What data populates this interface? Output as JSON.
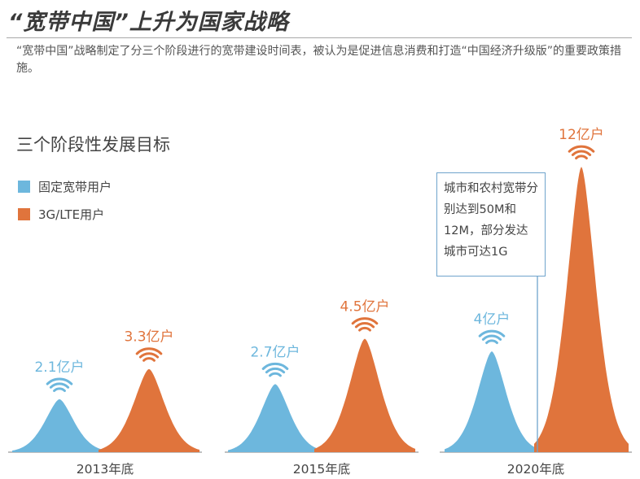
{
  "title": "“宽带中国”上升为国家战略",
  "subtitle": "“宽带中国”战略制定了分三个阶段进行的宽带建设时间表，被认为是促进信息消费和打造“中国经济升级版”的重要政策措施。",
  "callout": "城市和农村宽带分别达到50M和12M，部分发达城市可达1G",
  "chart_data": {
    "type": "area",
    "title": "三个阶段性发展目标",
    "categories": [
      "2013年底",
      "2015年底",
      "2020年底"
    ],
    "series": [
      {
        "name": "固定宽带用户",
        "color": "#6db7dd",
        "values": [
          2.1,
          2.7,
          4
        ],
        "labels": [
          "2.1亿户",
          "2.7亿户",
          "4亿户"
        ]
      },
      {
        "name": "3G/LTE用户",
        "color": "#e0743c",
        "values": [
          3.3,
          4.5,
          12
        ],
        "labels": [
          "3.3亿户",
          "4.5亿户",
          "12亿户"
        ]
      }
    ],
    "unit": "亿户",
    "grid": false,
    "legend": "top-left"
  }
}
